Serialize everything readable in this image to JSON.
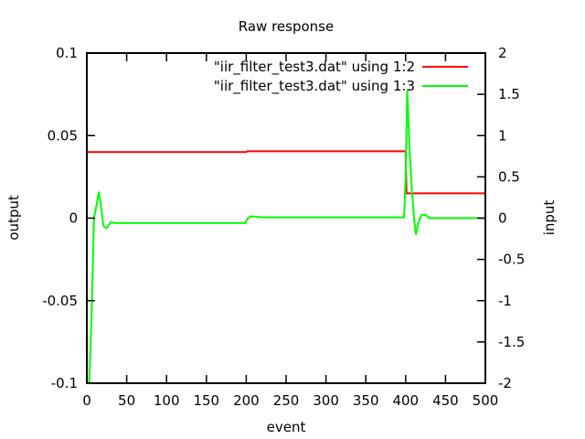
{
  "chart_data": {
    "type": "line",
    "title": "Raw response",
    "xlabel": "event",
    "ylabel": "output",
    "y2label": "input",
    "xlim": [
      0,
      500
    ],
    "ylim": [
      -0.1,
      0.1
    ],
    "y2lim": [
      -2,
      2
    ],
    "xticks": [
      0,
      50,
      100,
      150,
      200,
      250,
      300,
      350,
      400,
      450,
      500
    ],
    "yticks": [
      -0.1,
      -0.05,
      0,
      0.05,
      0.1
    ],
    "ytick_labels": [
      "-0.1",
      "-0.05",
      "0",
      "0.05",
      "0.1"
    ],
    "y2ticks": [
      -2,
      -1.5,
      -1,
      -0.5,
      0,
      0.5,
      1,
      1.5,
      2
    ],
    "y2tick_labels": [
      "-2",
      "-1.5",
      "-1",
      "-0.5",
      "0",
      "0.5",
      "1",
      "1.5",
      "2"
    ],
    "grid": false,
    "legend_position": "top-right",
    "series": [
      {
        "name": "\"iir_filter_test3.dat\" using 1:2",
        "color": "#ff0000",
        "axis": "y",
        "x": [
          0,
          200,
          201,
          399,
          400,
          401,
          500
        ],
        "y": [
          0.04,
          0.04,
          0.0405,
          0.0405,
          0.04,
          0.015,
          0.015
        ]
      },
      {
        "name": "\"iir_filter_test3.dat\" using 1:3",
        "color": "#00ff00",
        "axis": "y2",
        "x": [
          0,
          3,
          6,
          9,
          12,
          15,
          18,
          21,
          25,
          30,
          35,
          45,
          100,
          150,
          199,
          202,
          205,
          210,
          220,
          300,
          350,
          398,
          400,
          402,
          405,
          408,
          411,
          413,
          416,
          420,
          425,
          430,
          440,
          470,
          500
        ],
        "y": [
          -2,
          -2,
          -1.2,
          0,
          0.15,
          0.32,
          0.12,
          -0.1,
          -0.12,
          -0.05,
          -0.06,
          -0.06,
          -0.06,
          -0.06,
          -0.06,
          0,
          0.02,
          0.02,
          0.01,
          0.01,
          0.01,
          0.01,
          0.5,
          1.55,
          0.8,
          0.3,
          -0.05,
          -0.2,
          -0.05,
          0.04,
          0.04,
          0,
          0,
          0,
          0
        ]
      }
    ]
  }
}
